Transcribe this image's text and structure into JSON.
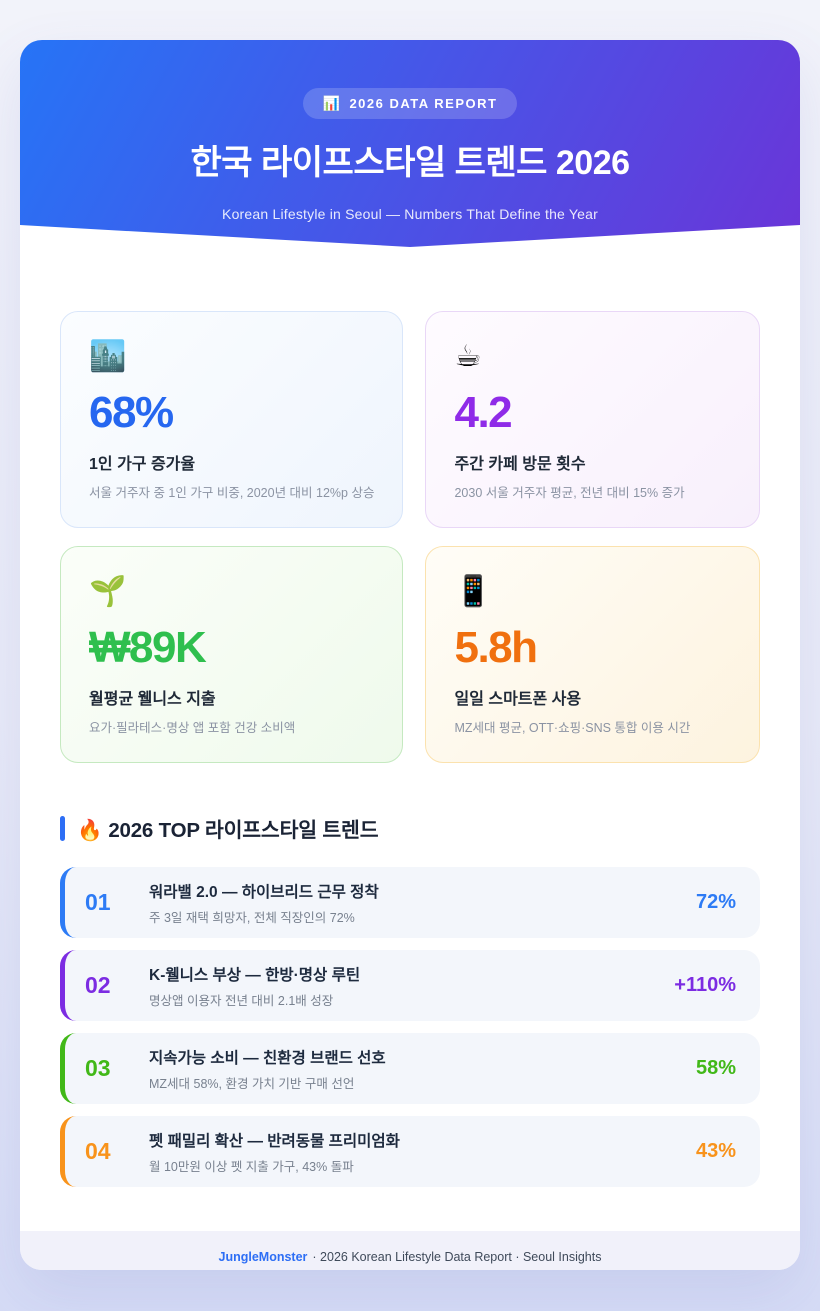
{
  "header": {
    "badge_icon": "📊",
    "badge_label": "2026 DATA REPORT",
    "title": "한국 라이프스타일 트렌드 2026",
    "subtitle": "Korean Lifestyle in Seoul — Numbers That Define the Year",
    "gradient_start": "#2674f6",
    "gradient_end": "#6a35d8"
  },
  "stats": [
    {
      "icon": "🏙️",
      "value": "68%",
      "label": "1인 가구 증가율",
      "desc": "서울 거주자 중 1인 가구 비중, 2020년 대비 12%p 상승",
      "value_color": "#2667f0",
      "bg_start": "#fbfdff",
      "bg_end": "#eff5fd",
      "border_color": "#d9e6fa"
    },
    {
      "icon": "☕",
      "value": "4.2",
      "label": "주간 카페 방문 횟수",
      "desc": "2030 서울 거주자 평균, 전년 대비 15% 증가",
      "value_color": "#8f2be8",
      "bg_start": "#fefbff",
      "bg_end": "#f8f0fc",
      "border_color": "#e9d7f7"
    },
    {
      "icon": "🌱",
      "value": "₩89K",
      "label": "월평균 웰니스 지출",
      "desc": "요가·필라테스·명상 앱 포함 건강 소비액",
      "value_color": "#2fbf4e",
      "bg_start": "#fbfef9",
      "bg_end": "#effaec",
      "border_color": "#c5e9c0"
    },
    {
      "icon": "📱",
      "value": "5.8h",
      "label": "일일 스마트폰 사용",
      "desc": "MZ세대 평균, OTT·쇼핑·SNS 통합 이용 시간",
      "value_color": "#f0700f",
      "bg_start": "#fffdf7",
      "bg_end": "#fdf3df",
      "border_color": "#fbe2ae"
    }
  ],
  "trends": {
    "heading_icon": "🔥",
    "heading": "2026 TOP 라이프스타일 트렌드",
    "accent_bar_color": "#2d6ef5",
    "items": [
      {
        "rank": "01",
        "title": "워라밸 2.0 — 하이브리드 근무 정착",
        "desc": "주 3일 재택 희망자, 전체 직장인의 72%",
        "value": "72%",
        "color": "#2d7bf5"
      },
      {
        "rank": "02",
        "title": "K-웰니스 부상 — 한방·명상 루틴",
        "desc": "명상앱 이용자 전년 대비 2.1배 성장",
        "value": "+110%",
        "color": "#7c2ce2"
      },
      {
        "rank": "03",
        "title": "지속가능 소비 — 친환경 브랜드 선호",
        "desc": "MZ세대 58%, 환경 가치 기반 구매 선언",
        "value": "58%",
        "color": "#41b818"
      },
      {
        "rank": "04",
        "title": "펫 패밀리 확산 — 반려동물 프리미엄화",
        "desc": "월 10만원 이상 펫 지출 가구, 43% 돌파",
        "value": "43%",
        "color": "#f8931b"
      }
    ]
  },
  "footer": {
    "brand": "JungleMonster",
    "text": "· 2026 Korean Lifestyle Data Report · Seoul Insights"
  }
}
